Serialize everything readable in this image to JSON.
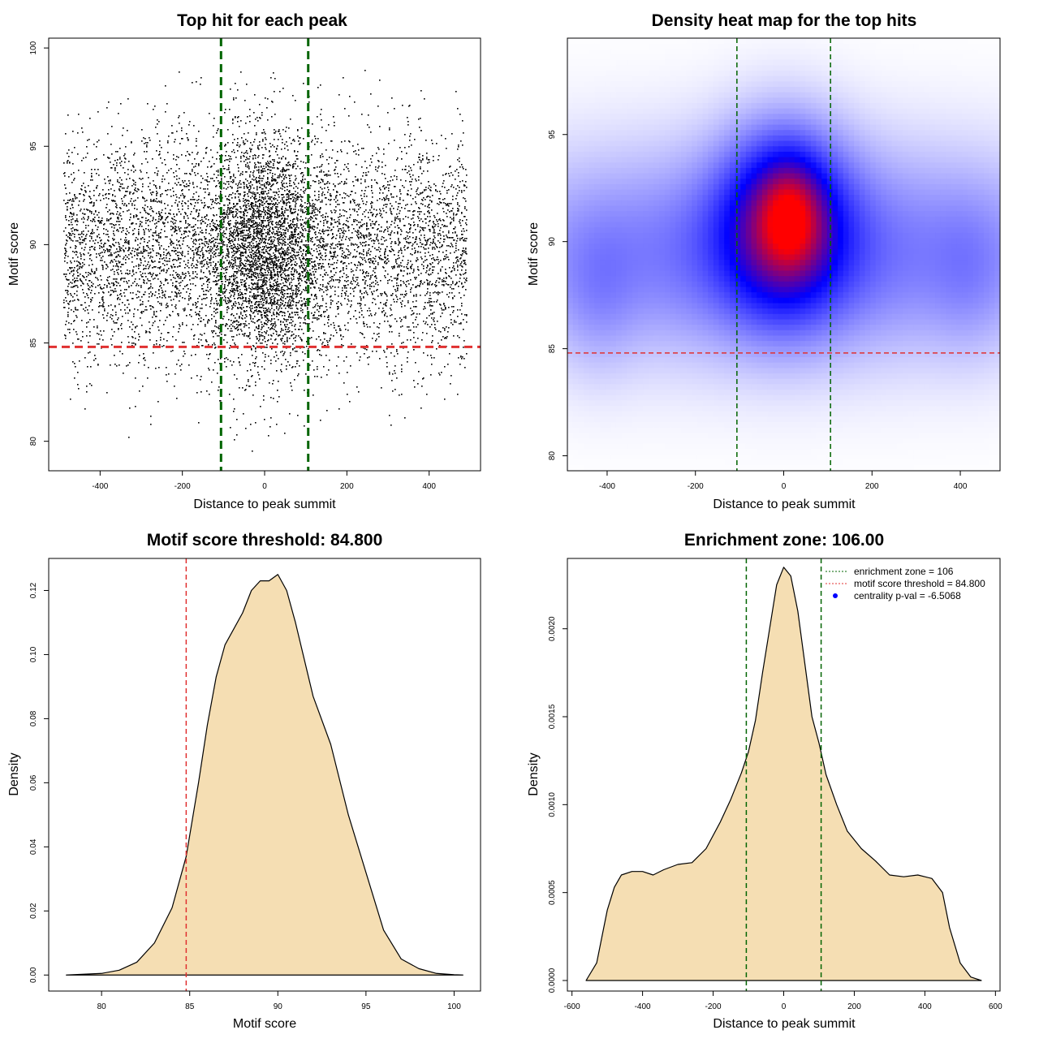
{
  "colors": {
    "scatter_point": "#000000",
    "threshold_line": "#e03030",
    "zone_line": "#006400",
    "fill": "#f5deb3",
    "heat_low": "#ffffff",
    "heat_mid": "#0000ff",
    "heat_high": "#ff0000",
    "legend_point": "#0000ff"
  },
  "chart_data": [
    {
      "type": "scatter",
      "title": "Top hit for each peak",
      "xlabel": "Distance to peak summit",
      "ylabel": "Motif score",
      "xlim": [
        -525,
        525
      ],
      "ylim": [
        78.5,
        100.5
      ],
      "xticks": [
        -400,
        -200,
        0,
        200,
        400
      ],
      "yticks": [
        80,
        85,
        90,
        95,
        100
      ],
      "hlines": [
        {
          "y": 84.8,
          "style": "dashed",
          "color": "red"
        }
      ],
      "vlines": [
        {
          "x": -106,
          "style": "dashed",
          "color": "green"
        },
        {
          "x": 106,
          "style": "dashed",
          "color": "green"
        }
      ],
      "point_model": {
        "n_points": 9000,
        "x_range": [
          -490,
          490
        ],
        "center_fraction": 0.3,
        "center_x_sd": 70,
        "score_mean": 89.8,
        "score_sd": 2.9,
        "score_range": [
          79,
          99
        ]
      }
    },
    {
      "type": "heatmap",
      "title": "Density heat map for the top hits",
      "xlabel": "Distance to peak summit",
      "ylabel": "Motif score",
      "xlim": [
        -490,
        490
      ],
      "ylim": [
        79.3,
        99.5
      ],
      "xticks": [
        -400,
        -200,
        0,
        200,
        400
      ],
      "yticks": [
        80,
        85,
        90,
        95
      ],
      "hlines": [
        {
          "y": 84.8,
          "style": "dashed",
          "color": "red"
        }
      ],
      "vlines": [
        {
          "x": -106,
          "style": "dashed",
          "color": "green"
        },
        {
          "x": 106,
          "style": "dashed",
          "color": "green"
        }
      ],
      "density_components": [
        {
          "x": 0,
          "y": 90.8,
          "sx": 95,
          "sy": 2.8,
          "w": 1.0
        },
        {
          "x": 15,
          "y": 91.2,
          "sx": 45,
          "sy": 1.6,
          "w": 0.55
        },
        {
          "x": 0,
          "y": 89.5,
          "sx": 480,
          "sy": 3.2,
          "w": 0.42
        },
        {
          "x": -420,
          "y": 87.5,
          "sx": 60,
          "sy": 2.5,
          "w": 0.12
        },
        {
          "x": 420,
          "y": 88.5,
          "sx": 60,
          "sy": 2.5,
          "w": 0.1
        }
      ]
    },
    {
      "type": "area",
      "title": "Motif score threshold: 84.800",
      "xlabel": "Motif score",
      "ylabel": "Density",
      "xlim": [
        77,
        101.5
      ],
      "ylim": [
        -0.005,
        0.13
      ],
      "xticks": [
        80,
        85,
        90,
        95,
        100
      ],
      "yticks": [
        0.0,
        0.02,
        0.04,
        0.06,
        0.08,
        0.1,
        0.12
      ],
      "ytick_labels": [
        "0.00",
        "0.02",
        "0.04",
        "0.06",
        "0.08",
        "0.10",
        "0.12"
      ],
      "vlines": [
        {
          "x": 84.8,
          "style": "dashed",
          "color": "red"
        }
      ],
      "x": [
        78,
        80,
        81,
        82,
        83,
        84,
        84.8,
        85.5,
        86,
        86.5,
        87,
        88,
        88.5,
        89,
        89.5,
        90,
        90.5,
        91,
        92,
        93,
        94,
        95,
        96,
        97,
        98,
        99,
        100,
        100.5
      ],
      "y": [
        0.0,
        0.0005,
        0.0015,
        0.004,
        0.01,
        0.021,
        0.037,
        0.06,
        0.078,
        0.093,
        0.103,
        0.113,
        0.12,
        0.123,
        0.123,
        0.125,
        0.12,
        0.11,
        0.087,
        0.072,
        0.05,
        0.032,
        0.014,
        0.005,
        0.002,
        0.0005,
        0.0001,
        0.0
      ]
    },
    {
      "type": "area",
      "title": "Enrichment zone: 106.00",
      "xlabel": "Distance to peak summit",
      "ylabel": "Density",
      "xlim": [
        -613,
        613
      ],
      "ylim": [
        -6e-05,
        0.0024
      ],
      "xticks": [
        -600,
        -400,
        -200,
        0,
        200,
        400,
        600
      ],
      "yticks": [
        0.0,
        0.0005,
        0.001,
        0.0015,
        0.002
      ],
      "ytick_labels": [
        "0.0000",
        "0.0005",
        "0.0010",
        "0.0015",
        "0.0020"
      ],
      "vlines": [
        {
          "x": -106,
          "style": "dashed",
          "color": "green"
        },
        {
          "x": 106,
          "style": "dashed",
          "color": "green"
        }
      ],
      "x": [
        -560,
        -530,
        -500,
        -480,
        -460,
        -430,
        -400,
        -370,
        -340,
        -300,
        -260,
        -220,
        -180,
        -150,
        -120,
        -100,
        -80,
        -60,
        -40,
        -20,
        0,
        20,
        40,
        60,
        80,
        100,
        120,
        150,
        180,
        220,
        260,
        300,
        340,
        380,
        420,
        450,
        470,
        500,
        530,
        560
      ],
      "y": [
        0.0,
        0.0001,
        0.0004,
        0.00053,
        0.0006,
        0.00062,
        0.00062,
        0.0006,
        0.00063,
        0.00066,
        0.00067,
        0.00075,
        0.0009,
        0.00103,
        0.00118,
        0.0013,
        0.00148,
        0.00175,
        0.002,
        0.00225,
        0.00235,
        0.0023,
        0.0021,
        0.0018,
        0.0015,
        0.00135,
        0.00117,
        0.001,
        0.00085,
        0.00075,
        0.00068,
        0.0006,
        0.00059,
        0.0006,
        0.00058,
        0.0005,
        0.0003,
        0.0001,
        2e-05,
        0.0
      ],
      "legend": {
        "position": "top-right",
        "entries": [
          {
            "label": "enrichment zone = 106",
            "symbol": "dotted-line",
            "color": "green"
          },
          {
            "label": "motif score threshold = 84.800",
            "symbol": "dotted-line",
            "color": "red"
          },
          {
            "label": "centrality p-val = -6.5068",
            "symbol": "point",
            "color": "blue"
          }
        ]
      }
    }
  ]
}
